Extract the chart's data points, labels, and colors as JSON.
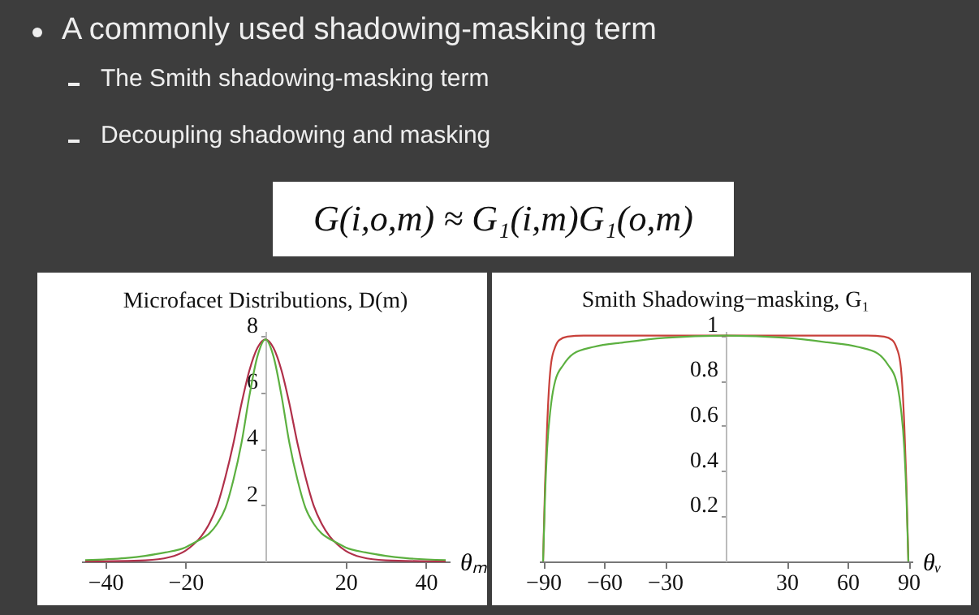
{
  "chart_data": [
    {
      "type": "line",
      "title": "Microfacet Distributions, D(m)",
      "xlabel": "θₘ",
      "annotations": [
        "A commonly used shadowing-masking term",
        "The Smith shadowing-masking term",
        "Decoupling shadowing and masking",
        "G(i,o,m) ≈ G₁(i,m)G₁(o,m)"
      ],
      "xlim": [
        -46,
        46
      ],
      "ylim": [
        0,
        8.2
      ],
      "xticks": [
        -40,
        -20,
        20,
        40
      ],
      "yticks": [
        2,
        4,
        6,
        8
      ],
      "grid": false,
      "legend": false,
      "series": [
        {
          "color": "#b0304a",
          "x": [
            -45,
            -30,
            -24,
            -20,
            -18,
            -16,
            -14,
            -12,
            -10,
            -8,
            -6,
            -4,
            -2,
            0,
            2,
            4,
            6,
            8,
            10,
            12,
            14,
            16,
            18,
            20,
            24,
            30,
            45
          ],
          "values": [
            0,
            0.04,
            0.15,
            0.38,
            0.6,
            0.9,
            1.35,
            2.0,
            3.0,
            4.2,
            5.6,
            6.8,
            7.6,
            7.9,
            7.6,
            6.8,
            5.6,
            4.2,
            3.0,
            2.0,
            1.35,
            0.9,
            0.6,
            0.38,
            0.15,
            0.04,
            0
          ]
        },
        {
          "color": "#5cb040",
          "x": [
            -45,
            -35,
            -30,
            -25,
            -20,
            -18,
            -16,
            -14,
            -12,
            -10,
            -8,
            -6,
            -4,
            -2,
            0,
            2,
            4,
            6,
            8,
            10,
            12,
            14,
            16,
            18,
            20,
            25,
            30,
            35,
            45
          ],
          "values": [
            0.05,
            0.12,
            0.2,
            0.32,
            0.5,
            0.65,
            0.8,
            1.0,
            1.35,
            1.9,
            2.9,
            4.2,
            5.9,
            7.3,
            7.9,
            7.3,
            5.9,
            4.2,
            2.9,
            1.9,
            1.35,
            1.0,
            0.8,
            0.65,
            0.5,
            0.32,
            0.2,
            0.12,
            0.05
          ]
        }
      ]
    },
    {
      "type": "line",
      "title": "Smith Shadowing−masking, G₁",
      "xlabel": "θᵥ",
      "xlim": [
        -92,
        92
      ],
      "ylim": [
        0,
        1.02
      ],
      "xticks": [
        -90,
        -60,
        -30,
        30,
        60,
        90
      ],
      "yticks": [
        0.2,
        0.4,
        0.6,
        0.8,
        1
      ],
      "grid": false,
      "legend": false,
      "series": [
        {
          "color": "#c8403a",
          "x": [
            -90,
            -89,
            -88,
            -87,
            -86,
            -84,
            -82,
            -78,
            -70,
            0,
            70,
            78,
            82,
            84,
            86,
            87,
            88,
            89,
            90
          ],
          "values": [
            0,
            0.35,
            0.6,
            0.78,
            0.88,
            0.95,
            0.98,
            0.995,
            1,
            1,
            1,
            0.995,
            0.98,
            0.95,
            0.88,
            0.78,
            0.6,
            0.35,
            0
          ]
        },
        {
          "color": "#5cb040",
          "x": [
            -90,
            -89,
            -88,
            -86,
            -84,
            -80,
            -75,
            -65,
            -50,
            -30,
            0,
            30,
            50,
            65,
            75,
            80,
            84,
            86,
            88,
            89,
            90
          ],
          "values": [
            0,
            0.3,
            0.5,
            0.7,
            0.8,
            0.87,
            0.92,
            0.95,
            0.97,
            0.99,
            1,
            0.99,
            0.97,
            0.95,
            0.92,
            0.87,
            0.8,
            0.7,
            0.5,
            0.3,
            0
          ]
        }
      ]
    }
  ]
}
